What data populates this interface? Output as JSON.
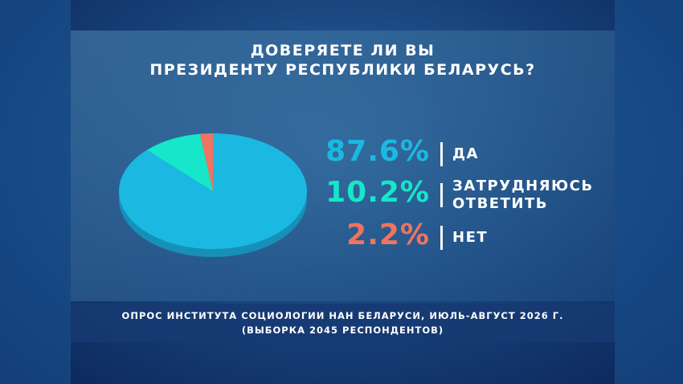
{
  "chart_data": {
    "type": "pie",
    "title": [
      "ДОВЕРЯЕТЕ ЛИ ВЫ",
      "ПРЕЗИДЕНТУ РЕСПУБЛИКИ БЕЛАРУСЬ?"
    ],
    "categories": [
      "ДА",
      "ЗАТРУДНЯЮСЬ ОТВЕТИТЬ",
      "НЕТ"
    ],
    "values": [
      87.6,
      10.2,
      2.2
    ],
    "value_labels": [
      "87.6%",
      "10.2%",
      "2.2%"
    ],
    "colors": [
      "#1bb9e2",
      "#16e6c9",
      "#f0735f"
    ],
    "source": [
      "ОПРОС ИНСТИТУТА СОЦИОЛОГИИ НАН БЕЛАРУСИ, ИЮЛЬ-АВГУСТ 2026 Г.",
      "(ВЫБОРКА 2045 РЕСПОНДЕНТОВ)"
    ]
  }
}
